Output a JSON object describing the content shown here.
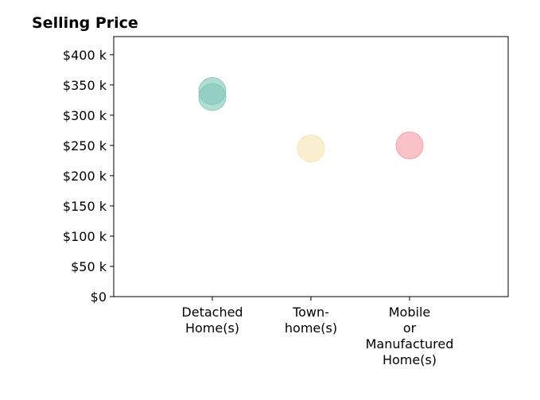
{
  "chart_data": {
    "type": "scatter",
    "title": "Selling Price",
    "xlabel": "",
    "ylabel": "",
    "categories": [
      [
        "Detached",
        "Home(s)"
      ],
      [
        "Town-",
        "home(s)"
      ],
      [
        "Mobile",
        "or",
        "Manufactured",
        "Home(s)"
      ]
    ],
    "y_ticks": [
      0,
      50000,
      100000,
      150000,
      200000,
      250000,
      300000,
      350000,
      400000
    ],
    "y_tick_labels": [
      "$0",
      "$50 k",
      "$100 k",
      "$150 k",
      "$200 k",
      "$250 k",
      "$300 k",
      "$350 k",
      "$400 k"
    ],
    "ylim": [
      0,
      430000
    ],
    "grid": false,
    "points": [
      {
        "category": 0,
        "value": 340000,
        "color": "#7fc7b8"
      },
      {
        "category": 0,
        "value": 330000,
        "color": "#7fc7b8"
      },
      {
        "category": 1,
        "value": 245000,
        "color": "#f7e2b3"
      },
      {
        "category": 2,
        "value": 250000,
        "color": "#f59aa3"
      }
    ]
  }
}
